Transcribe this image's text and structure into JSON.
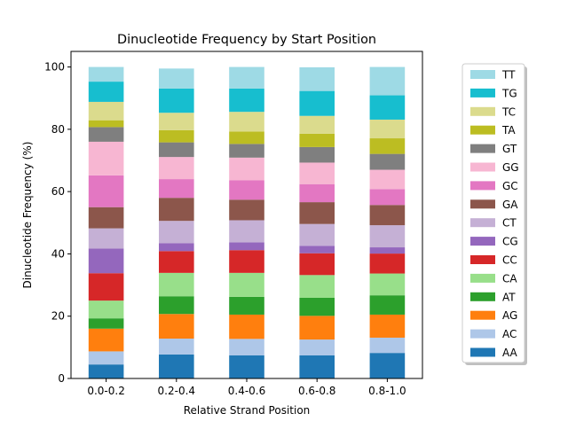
{
  "chart_data": {
    "type": "bar",
    "stacked": true,
    "title": "Dinucleotide Frequency by Start Position",
    "xlabel": "Relative Strand Position",
    "ylabel": "Dinucleotide Frequency (%)",
    "ylim": [
      0,
      105
    ],
    "yticks": [
      0,
      20,
      40,
      60,
      80,
      100
    ],
    "grid": false,
    "legend_placement": "right, outside",
    "categories": [
      "0.0-0.2",
      "0.2-0.4",
      "0.4-0.6",
      "0.6-0.8",
      "0.8-1.0"
    ],
    "series": [
      {
        "name": "AA",
        "color": "#1f77b4",
        "values": [
          4.5,
          7.7,
          7.4,
          7.4,
          8.2
        ]
      },
      {
        "name": "AC",
        "color": "#aec7e8",
        "values": [
          4.2,
          5.1,
          5.3,
          5.1,
          4.9
        ]
      },
      {
        "name": "AG",
        "color": "#ff7f0e",
        "values": [
          7.3,
          7.9,
          7.8,
          7.6,
          7.4
        ]
      },
      {
        "name": "AT",
        "color": "#2ca02c",
        "values": [
          3.3,
          5.7,
          5.7,
          5.8,
          6.2
        ]
      },
      {
        "name": "CA",
        "color": "#98df8a",
        "values": [
          5.7,
          7.5,
          7.7,
          7.3,
          7.0
        ]
      },
      {
        "name": "CC",
        "color": "#d62728",
        "values": [
          8.8,
          7.0,
          7.3,
          7.0,
          6.4
        ]
      },
      {
        "name": "CG",
        "color": "#9467bd",
        "values": [
          7.9,
          2.5,
          2.5,
          2.4,
          2.0
        ]
      },
      {
        "name": "CT",
        "color": "#c5b0d5",
        "values": [
          6.5,
          7.2,
          7.1,
          7.0,
          7.1
        ]
      },
      {
        "name": "GA",
        "color": "#8c564b",
        "values": [
          6.8,
          7.4,
          6.6,
          7.0,
          6.5
        ]
      },
      {
        "name": "GC",
        "color": "#e377c2",
        "values": [
          10.2,
          6.0,
          6.2,
          5.8,
          5.1
        ]
      },
      {
        "name": "GG",
        "color": "#f7b6d2",
        "values": [
          10.8,
          7.1,
          7.3,
          6.9,
          6.2
        ]
      },
      {
        "name": "GT",
        "color": "#7f7f7f",
        "values": [
          4.7,
          4.7,
          4.4,
          5.0,
          5.1
        ]
      },
      {
        "name": "TA",
        "color": "#bcbd22",
        "values": [
          2.2,
          3.9,
          4.0,
          4.3,
          5.0
        ]
      },
      {
        "name": "TC",
        "color": "#dbdb8d",
        "values": [
          5.9,
          5.6,
          6.3,
          5.7,
          6.0
        ]
      },
      {
        "name": "TG",
        "color": "#17becf",
        "values": [
          6.5,
          7.8,
          7.5,
          8.0,
          7.8
        ]
      },
      {
        "name": "TT",
        "color": "#9edae5",
        "values": [
          4.7,
          6.4,
          6.9,
          7.6,
          9.1
        ]
      }
    ]
  }
}
